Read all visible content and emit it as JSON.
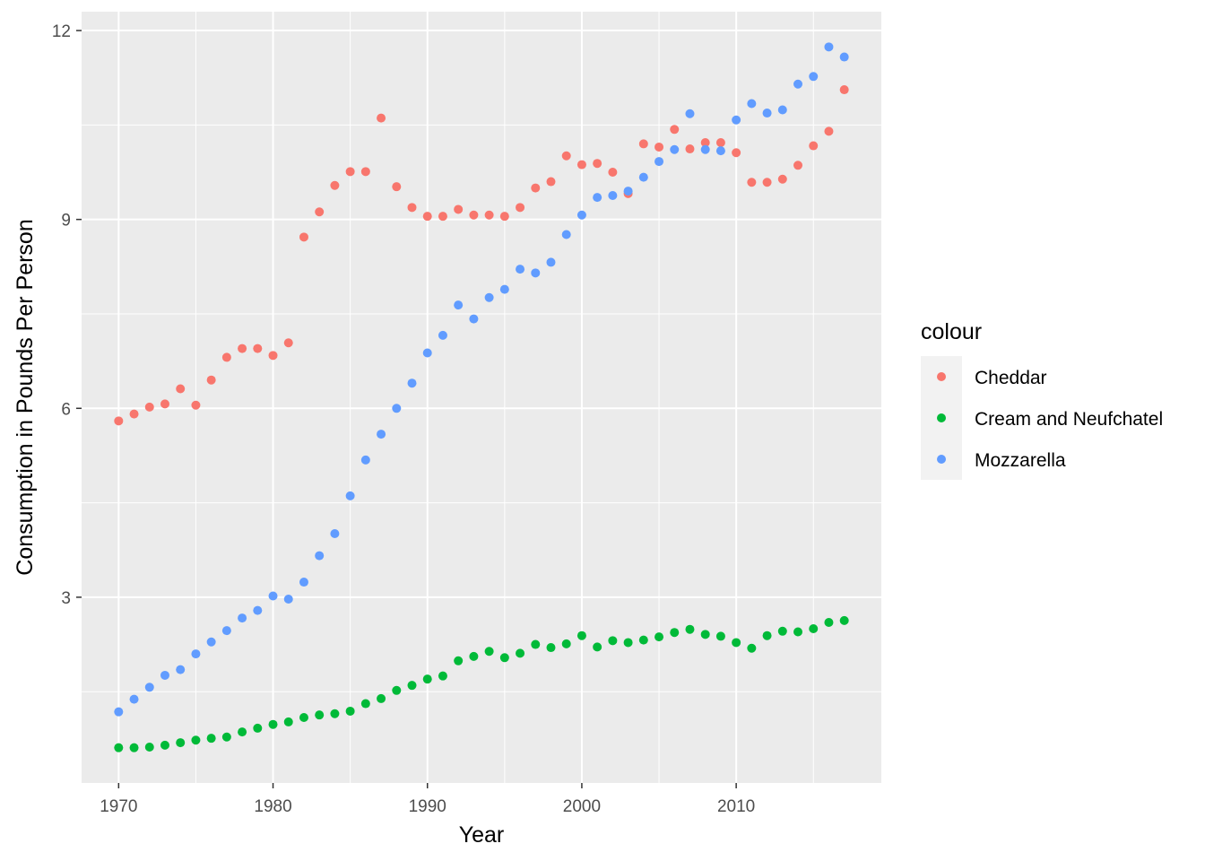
{
  "chart_data": {
    "type": "scatter",
    "title": "",
    "xlabel": "Year",
    "ylabel": "Consumption in Pounds Per Person",
    "xlim": [
      1967.6,
      2019.4
    ],
    "ylim": [
      0.05,
      12.3
    ],
    "x_ticks": [
      1970,
      1980,
      1990,
      2000,
      2010
    ],
    "y_ticks": [
      3,
      6,
      9,
      12
    ],
    "grid": true,
    "legend": {
      "title": "colour",
      "placement": "right"
    },
    "x": [
      1970,
      1971,
      1972,
      1973,
      1974,
      1975,
      1976,
      1977,
      1978,
      1979,
      1980,
      1981,
      1982,
      1983,
      1984,
      1985,
      1986,
      1987,
      1988,
      1989,
      1990,
      1991,
      1992,
      1993,
      1994,
      1995,
      1996,
      1997,
      1998,
      1999,
      2000,
      2001,
      2002,
      2003,
      2004,
      2005,
      2006,
      2007,
      2008,
      2009,
      2010,
      2011,
      2012,
      2013,
      2014,
      2015,
      2016,
      2017
    ],
    "series": [
      {
        "name": "Cheddar",
        "color": "#F8766D",
        "values": [
          5.8,
          5.91,
          6.02,
          6.07,
          6.31,
          6.05,
          6.45,
          6.81,
          6.95,
          6.95,
          6.84,
          7.04,
          8.72,
          9.12,
          9.54,
          9.76,
          9.76,
          10.61,
          9.52,
          9.19,
          9.05,
          9.05,
          9.16,
          9.07,
          9.07,
          9.05,
          9.19,
          9.5,
          9.6,
          10.01,
          9.87,
          9.89,
          9.75,
          9.41,
          10.2,
          10.15,
          10.43,
          10.12,
          10.22,
          10.22,
          10.06,
          9.59,
          9.59,
          9.64,
          9.86,
          10.17,
          10.4,
          11.06
        ]
      },
      {
        "name": "Cream and Neufchatel",
        "color": "#00BA38",
        "values": [
          0.61,
          0.61,
          0.62,
          0.65,
          0.69,
          0.73,
          0.76,
          0.78,
          0.86,
          0.92,
          0.98,
          1.02,
          1.09,
          1.13,
          1.15,
          1.19,
          1.31,
          1.39,
          1.52,
          1.6,
          1.7,
          1.75,
          1.99,
          2.06,
          2.14,
          2.04,
          2.11,
          2.25,
          2.2,
          2.26,
          2.39,
          2.21,
          2.31,
          2.28,
          2.32,
          2.37,
          2.44,
          2.49,
          2.41,
          2.38,
          2.28,
          2.19,
          2.39,
          2.46,
          2.45,
          2.5,
          2.6,
          2.63
        ]
      },
      {
        "name": "Mozzarella",
        "color": "#619CFF",
        "values": [
          1.18,
          1.38,
          1.57,
          1.76,
          1.85,
          2.1,
          2.29,
          2.47,
          2.67,
          2.79,
          3.02,
          2.97,
          3.24,
          3.66,
          4.01,
          4.61,
          5.18,
          5.59,
          6.0,
          6.4,
          6.88,
          7.16,
          7.64,
          7.42,
          7.76,
          7.89,
          8.21,
          8.15,
          8.32,
          8.76,
          9.07,
          9.35,
          9.38,
          9.45,
          9.67,
          9.92,
          10.11,
          10.68,
          10.11,
          10.09,
          10.58,
          10.84,
          10.69,
          10.74,
          11.15,
          11.27,
          11.74,
          11.58
        ]
      }
    ]
  }
}
